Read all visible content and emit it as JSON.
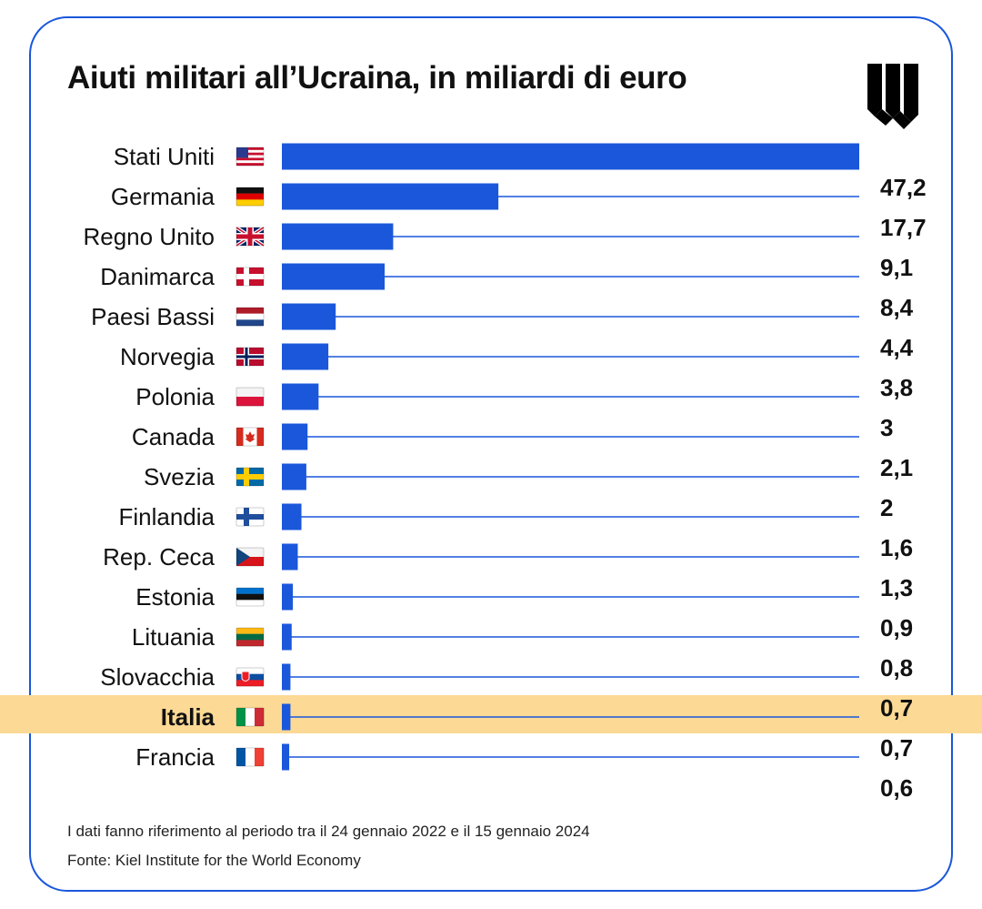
{
  "title": "Aiuti militari all’Ucraina, in miliardi di euro",
  "colors": {
    "bar": "#1a57db",
    "card_border": "#1a57db",
    "highlight": "#fcd994",
    "logo": "#000000",
    "text": "#111111"
  },
  "logo_icon": "w-logo-icon",
  "chart_data": {
    "type": "bar",
    "orientation": "horizontal",
    "title": "Aiuti militari all’Ucraina, in miliardi di euro",
    "xlabel": "",
    "ylabel": "",
    "xlim": [
      0,
      47.2
    ],
    "grid": false,
    "legend": "none",
    "highlighted_category": "Italia",
    "categories": [
      "Stati Uniti",
      "Germania",
      "Regno Unito",
      "Danimarca",
      "Paesi Bassi",
      "Norvegia",
      "Polonia",
      "Canada",
      "Svezia",
      "Finlandia",
      "Rep. Ceca",
      "Estonia",
      "Lituania",
      "Slovacchia",
      "Italia",
      "Francia"
    ],
    "values": [
      47.2,
      17.7,
      9.1,
      8.4,
      4.4,
      3.8,
      3,
      2.1,
      2,
      1.6,
      1.3,
      0.9,
      0.8,
      0.7,
      0.7,
      0.6
    ],
    "value_labels": [
      "47,2",
      "17,7",
      "9,1",
      "8,4",
      "4,4",
      "3,8",
      "3",
      "2,1",
      "2",
      "1,6",
      "1,3",
      "0,9",
      "0,8",
      "0,7",
      "0,7",
      "0,6"
    ],
    "flags": [
      "flag-us-icon",
      "flag-de-icon",
      "flag-gb-icon",
      "flag-dk-icon",
      "flag-nl-icon",
      "flag-no-icon",
      "flag-pl-icon",
      "flag-ca-icon",
      "flag-se-icon",
      "flag-fi-icon",
      "flag-cz-icon",
      "flag-ee-icon",
      "flag-lt-icon",
      "flag-sk-icon",
      "flag-it-icon",
      "flag-fr-icon"
    ]
  },
  "footnotes": {
    "note": "I dati fanno riferimento al periodo tra il 24 gennaio 2022 e il 15 gennaio 2024",
    "source": "Fonte: Kiel Institute for the World Economy"
  }
}
